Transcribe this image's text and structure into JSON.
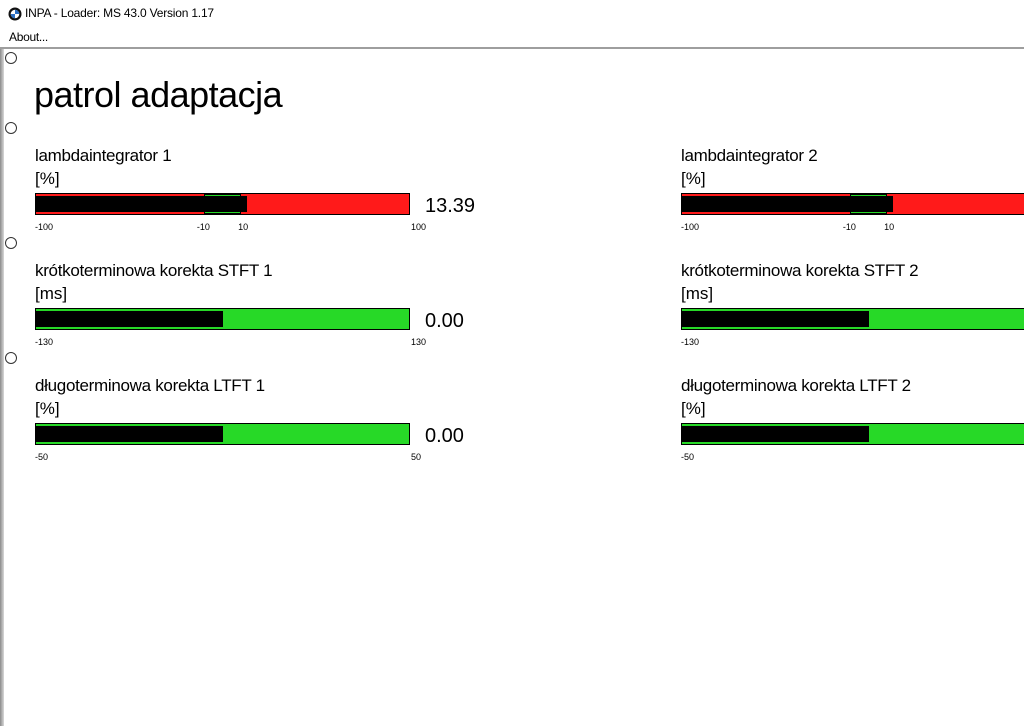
{
  "window": {
    "title": "INPA - Loader:  MS 43.0 Version 1.17",
    "icon": "bmw-logo-icon"
  },
  "menu": {
    "about": "About..."
  },
  "page": {
    "title": "patrol adaptacja"
  },
  "colors": {
    "out_of_range": "#ff1a1a",
    "in_range": "#27d927",
    "fill": "#000000"
  },
  "gauges": [
    {
      "label": "lambdaintegrator 1",
      "unit": "[%]",
      "value": "13.39",
      "value_num": 13.39,
      "min": -100,
      "max": 100,
      "tol_min": -10,
      "tol_max": 10,
      "tick_min": "-100",
      "tick_tol_min": "-10",
      "tick_tol_max": "10",
      "tick_max": "100",
      "state": "out_of_range"
    },
    {
      "label": "lambdaintegrator 2",
      "unit": "[%]",
      "value_num": 13.39,
      "min": -100,
      "max": 100,
      "tol_min": -10,
      "tol_max": 10,
      "tick_min": "-100",
      "tick_tol_min": "-10",
      "tick_tol_max": "10",
      "state": "out_of_range"
    },
    {
      "label": "krótkoterminowa korekta STFT 1",
      "unit": "[ms]",
      "value": "0.00",
      "value_num": 0,
      "min": -130,
      "max": 130,
      "tick_min": "-130",
      "tick_max": "130",
      "state": "in_range"
    },
    {
      "label": "krótkoterminowa korekta STFT 2",
      "unit": "[ms]",
      "value_num": 0,
      "min": -130,
      "max": 130,
      "tick_min": "-130",
      "state": "in_range"
    },
    {
      "label": "długoterminowa korekta LTFT 1",
      "unit": "[%]",
      "value": "0.00",
      "value_num": 0,
      "min": -50,
      "max": 50,
      "tick_min": "-50",
      "tick_max": "50",
      "state": "in_range"
    },
    {
      "label": "długoterminowa korekta LTFT 2",
      "unit": "[%]",
      "value_num": 0,
      "min": -50,
      "max": 50,
      "tick_min": "-50",
      "state": "in_range"
    }
  ]
}
